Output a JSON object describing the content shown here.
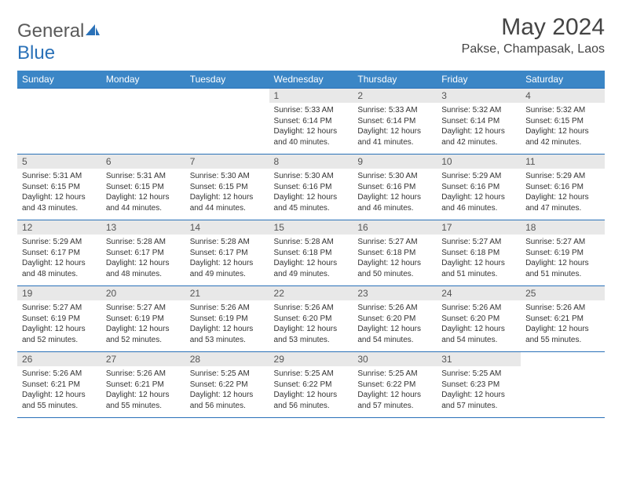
{
  "logo": {
    "text_general": "General",
    "text_blue": "Blue"
  },
  "title": "May 2024",
  "location": "Pakse, Champasak, Laos",
  "colors": {
    "header_bg": "#3b86c6",
    "header_text": "#ffffff",
    "daynum_bg": "#e8e8e8",
    "border": "#2a71b8",
    "text": "#333333",
    "logo_gray": "#5a5a5a",
    "logo_blue": "#2a71b8"
  },
  "weekdays": [
    "Sunday",
    "Monday",
    "Tuesday",
    "Wednesday",
    "Thursday",
    "Friday",
    "Saturday"
  ],
  "weeks": [
    [
      null,
      null,
      null,
      {
        "n": "1",
        "sr": "5:33 AM",
        "ss": "6:14 PM",
        "dl": "12 hours and 40 minutes."
      },
      {
        "n": "2",
        "sr": "5:33 AM",
        "ss": "6:14 PM",
        "dl": "12 hours and 41 minutes."
      },
      {
        "n": "3",
        "sr": "5:32 AM",
        "ss": "6:14 PM",
        "dl": "12 hours and 42 minutes."
      },
      {
        "n": "4",
        "sr": "5:32 AM",
        "ss": "6:15 PM",
        "dl": "12 hours and 42 minutes."
      }
    ],
    [
      {
        "n": "5",
        "sr": "5:31 AM",
        "ss": "6:15 PM",
        "dl": "12 hours and 43 minutes."
      },
      {
        "n": "6",
        "sr": "5:31 AM",
        "ss": "6:15 PM",
        "dl": "12 hours and 44 minutes."
      },
      {
        "n": "7",
        "sr": "5:30 AM",
        "ss": "6:15 PM",
        "dl": "12 hours and 44 minutes."
      },
      {
        "n": "8",
        "sr": "5:30 AM",
        "ss": "6:16 PM",
        "dl": "12 hours and 45 minutes."
      },
      {
        "n": "9",
        "sr": "5:30 AM",
        "ss": "6:16 PM",
        "dl": "12 hours and 46 minutes."
      },
      {
        "n": "10",
        "sr": "5:29 AM",
        "ss": "6:16 PM",
        "dl": "12 hours and 46 minutes."
      },
      {
        "n": "11",
        "sr": "5:29 AM",
        "ss": "6:16 PM",
        "dl": "12 hours and 47 minutes."
      }
    ],
    [
      {
        "n": "12",
        "sr": "5:29 AM",
        "ss": "6:17 PM",
        "dl": "12 hours and 48 minutes."
      },
      {
        "n": "13",
        "sr": "5:28 AM",
        "ss": "6:17 PM",
        "dl": "12 hours and 48 minutes."
      },
      {
        "n": "14",
        "sr": "5:28 AM",
        "ss": "6:17 PM",
        "dl": "12 hours and 49 minutes."
      },
      {
        "n": "15",
        "sr": "5:28 AM",
        "ss": "6:18 PM",
        "dl": "12 hours and 49 minutes."
      },
      {
        "n": "16",
        "sr": "5:27 AM",
        "ss": "6:18 PM",
        "dl": "12 hours and 50 minutes."
      },
      {
        "n": "17",
        "sr": "5:27 AM",
        "ss": "6:18 PM",
        "dl": "12 hours and 51 minutes."
      },
      {
        "n": "18",
        "sr": "5:27 AM",
        "ss": "6:19 PM",
        "dl": "12 hours and 51 minutes."
      }
    ],
    [
      {
        "n": "19",
        "sr": "5:27 AM",
        "ss": "6:19 PM",
        "dl": "12 hours and 52 minutes."
      },
      {
        "n": "20",
        "sr": "5:27 AM",
        "ss": "6:19 PM",
        "dl": "12 hours and 52 minutes."
      },
      {
        "n": "21",
        "sr": "5:26 AM",
        "ss": "6:19 PM",
        "dl": "12 hours and 53 minutes."
      },
      {
        "n": "22",
        "sr": "5:26 AM",
        "ss": "6:20 PM",
        "dl": "12 hours and 53 minutes."
      },
      {
        "n": "23",
        "sr": "5:26 AM",
        "ss": "6:20 PM",
        "dl": "12 hours and 54 minutes."
      },
      {
        "n": "24",
        "sr": "5:26 AM",
        "ss": "6:20 PM",
        "dl": "12 hours and 54 minutes."
      },
      {
        "n": "25",
        "sr": "5:26 AM",
        "ss": "6:21 PM",
        "dl": "12 hours and 55 minutes."
      }
    ],
    [
      {
        "n": "26",
        "sr": "5:26 AM",
        "ss": "6:21 PM",
        "dl": "12 hours and 55 minutes."
      },
      {
        "n": "27",
        "sr": "5:26 AM",
        "ss": "6:21 PM",
        "dl": "12 hours and 55 minutes."
      },
      {
        "n": "28",
        "sr": "5:25 AM",
        "ss": "6:22 PM",
        "dl": "12 hours and 56 minutes."
      },
      {
        "n": "29",
        "sr": "5:25 AM",
        "ss": "6:22 PM",
        "dl": "12 hours and 56 minutes."
      },
      {
        "n": "30",
        "sr": "5:25 AM",
        "ss": "6:22 PM",
        "dl": "12 hours and 57 minutes."
      },
      {
        "n": "31",
        "sr": "5:25 AM",
        "ss": "6:23 PM",
        "dl": "12 hours and 57 minutes."
      },
      null
    ]
  ],
  "labels": {
    "sunrise": "Sunrise:",
    "sunset": "Sunset:",
    "daylight": "Daylight:"
  }
}
